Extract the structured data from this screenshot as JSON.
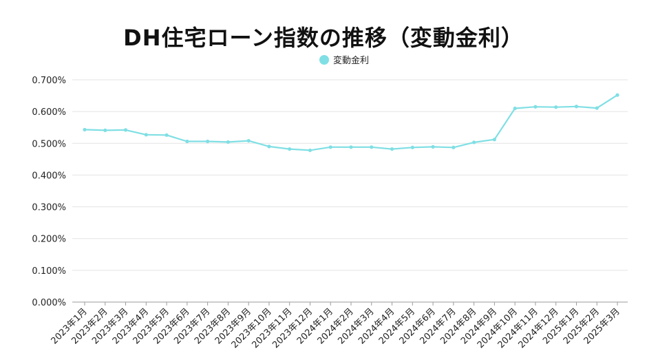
{
  "chart_data": {
    "type": "line",
    "title": "DH住宅ローン指数の推移（変動金利）",
    "legend_position": "top-center",
    "grid": true,
    "ylim": [
      0,
      0.7
    ],
    "yticks": [
      0,
      0.1,
      0.2,
      0.3,
      0.4,
      0.5,
      0.6,
      0.7
    ],
    "ytick_labels": [
      "0.000%",
      "0.100%",
      "0.200%",
      "0.300%",
      "0.400%",
      "0.500%",
      "0.600%",
      "0.700%"
    ],
    "categories": [
      "2023年1月",
      "2023年2月",
      "2023年3月",
      "2023年4月",
      "2023年5月",
      "2023年6月",
      "2023年7月",
      "2023年8月",
      "2023年9月",
      "2023年10月",
      "2023年11月",
      "2023年12月",
      "2024年1月",
      "2024年2月",
      "2024年3月",
      "2024年4月",
      "2024年5月",
      "2024年6月",
      "2024年7月",
      "2024年8月",
      "2024年9月",
      "2024年10月",
      "2024年11月",
      "2024年12月",
      "2025年1月",
      "2025年2月",
      "2025年3月"
    ],
    "series": [
      {
        "name": "変動金利",
        "color": "#7fdfe4",
        "values": [
          0.543,
          0.541,
          0.542,
          0.527,
          0.526,
          0.506,
          0.506,
          0.504,
          0.508,
          0.49,
          0.482,
          0.478,
          0.488,
          0.488,
          0.488,
          0.482,
          0.487,
          0.489,
          0.487,
          0.503,
          0.512,
          0.61,
          0.615,
          0.614,
          0.616,
          0.611,
          0.652
        ]
      }
    ]
  }
}
